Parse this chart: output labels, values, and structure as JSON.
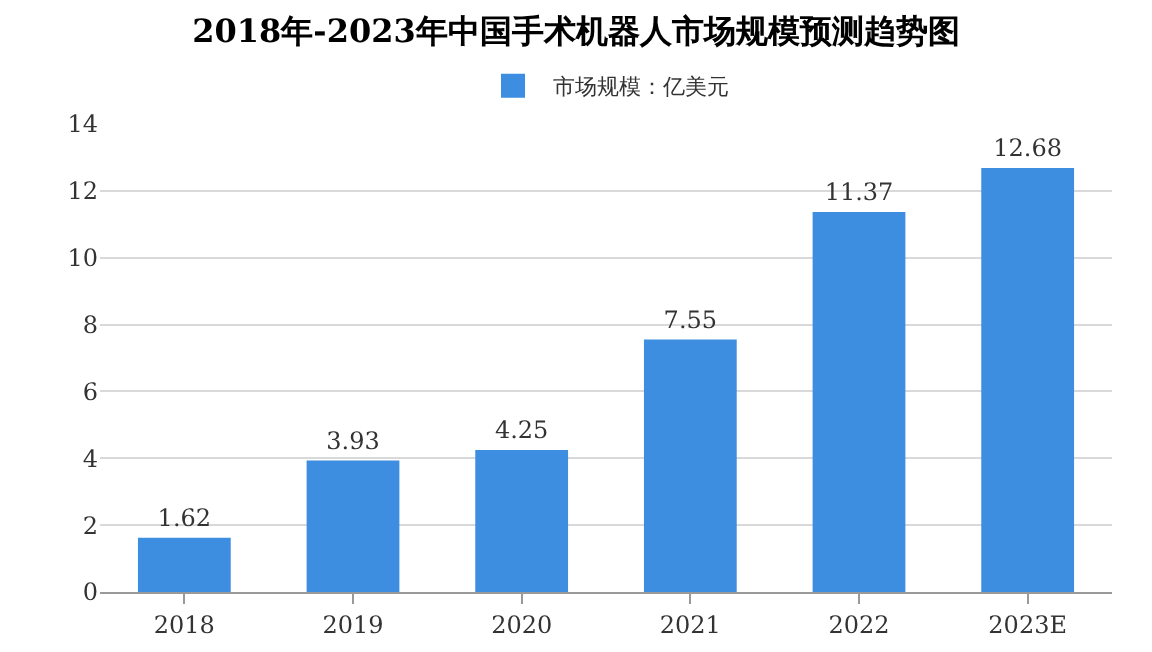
{
  "chart_data": {
    "type": "bar",
    "title": "2018年-2023年中国手术机器人市场规模预测趋势图",
    "categories": [
      "2018",
      "2019",
      "2020",
      "2021",
      "2022",
      "2023E"
    ],
    "series": [
      {
        "name": "市场规模：亿美元",
        "color": "#3d8ee0",
        "values": [
          1.62,
          3.93,
          4.25,
          7.55,
          11.37,
          12.68
        ]
      }
    ],
    "ylim": [
      0,
      14
    ],
    "yticks": [
      0,
      2,
      4,
      6,
      8,
      10,
      12,
      14
    ],
    "grid": "y",
    "legend": "top",
    "data_labels": true
  }
}
